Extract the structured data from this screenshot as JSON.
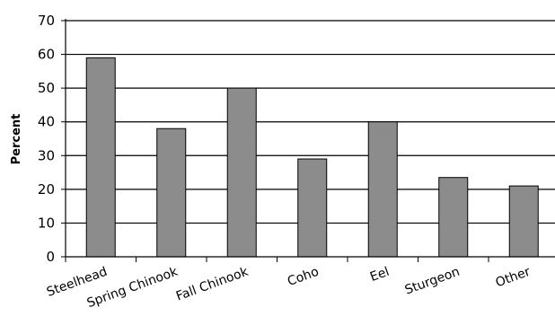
{
  "chart_data": {
    "type": "bar",
    "title": "",
    "xlabel": "",
    "ylabel": "Percent",
    "categories": [
      "Steelhead",
      "Spring Chinook",
      "Fall Chinook",
      "Coho",
      "Eel",
      "Sturgeon",
      "Other"
    ],
    "values": [
      59,
      38,
      50,
      29,
      40,
      23.5,
      21
    ],
    "ylim": [
      0,
      70
    ],
    "yticks": [
      0,
      10,
      20,
      30,
      40,
      50,
      60,
      70
    ],
    "grid": true,
    "legend": "none",
    "colors": {
      "bar_fill": "#8c8c8c",
      "bar_stroke": "#000000",
      "gridline": "#000000",
      "background": "#ffffff"
    }
  }
}
